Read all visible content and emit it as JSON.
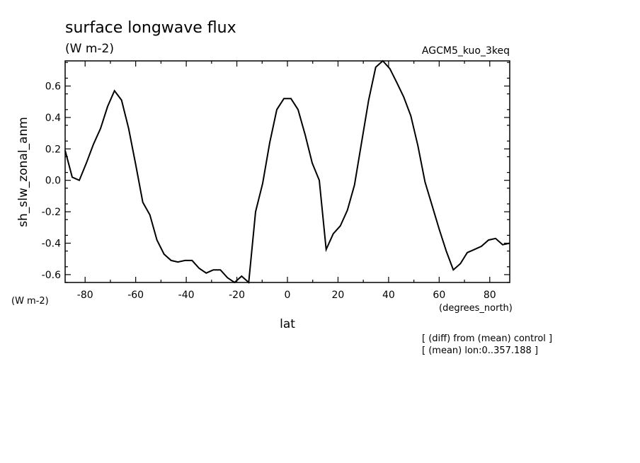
{
  "chart_data": {
    "type": "line",
    "title": "surface longwave flux",
    "subtitle": "(W m-2)",
    "run_label": "AGCM5_kuo_3keq",
    "xlabel": "lat",
    "xunits": "(degrees_north)",
    "ylabel": "sh_slw_zonal_anm",
    "yunits": "(W m-2)",
    "notes": [
      "[ (diff) from (mean) control ]",
      "[ (mean) lon:0..357.188 ]"
    ],
    "xlim": [
      -87.9,
      87.9
    ],
    "ylim": [
      -0.65,
      0.76
    ],
    "xticks": [
      -80,
      -60,
      -40,
      -20,
      0,
      20,
      40,
      60,
      80
    ],
    "yticks": [
      -0.6,
      -0.4,
      -0.2,
      0.0,
      0.2,
      0.4,
      0.6
    ],
    "ytick_labels": [
      "-0.6",
      "-0.4",
      "-0.2",
      "0.0",
      "0.2",
      "0.4",
      "0.6"
    ],
    "grid": false,
    "series": [
      {
        "x": [
          -87.9,
          -85.1,
          -82.3,
          -79.5,
          -76.7,
          -73.9,
          -71.1,
          -68.4,
          -65.6,
          -62.8,
          -60.0,
          -57.2,
          -54.4,
          -51.6,
          -48.8,
          -46.0,
          -43.3,
          -40.5,
          -37.7,
          -34.9,
          -32.1,
          -29.3,
          -26.5,
          -23.7,
          -20.9,
          -18.1,
          -15.3,
          -12.6,
          -9.8,
          -7.0,
          -4.2,
          -1.4,
          1.4,
          4.2,
          7.0,
          9.8,
          12.6,
          15.3,
          18.1,
          20.9,
          23.7,
          26.5,
          29.3,
          32.1,
          34.9,
          37.7,
          40.5,
          43.3,
          46.0,
          48.8,
          51.6,
          54.4,
          57.2,
          60.0,
          62.8,
          65.6,
          68.4,
          71.1,
          73.9,
          76.7,
          79.5,
          82.3,
          85.1,
          87.9
        ],
        "y": [
          0.19,
          0.02,
          0.0,
          0.11,
          0.23,
          0.33,
          0.47,
          0.57,
          0.51,
          0.33,
          0.1,
          -0.14,
          -0.22,
          -0.38,
          -0.47,
          -0.51,
          -0.52,
          -0.51,
          -0.51,
          -0.56,
          -0.59,
          -0.57,
          -0.57,
          -0.62,
          -0.65,
          -0.61,
          -0.65,
          -0.2,
          -0.02,
          0.24,
          0.45,
          0.52,
          0.52,
          0.45,
          0.29,
          0.11,
          0.0,
          -0.44,
          -0.34,
          -0.29,
          -0.19,
          -0.03,
          0.24,
          0.51,
          0.72,
          0.76,
          0.71,
          0.62,
          0.53,
          0.41,
          0.22,
          -0.01,
          -0.16,
          -0.31,
          -0.45,
          -0.57,
          -0.53,
          -0.46,
          -0.44,
          -0.42,
          -0.38,
          -0.37,
          -0.41,
          -0.4
        ]
      }
    ]
  }
}
